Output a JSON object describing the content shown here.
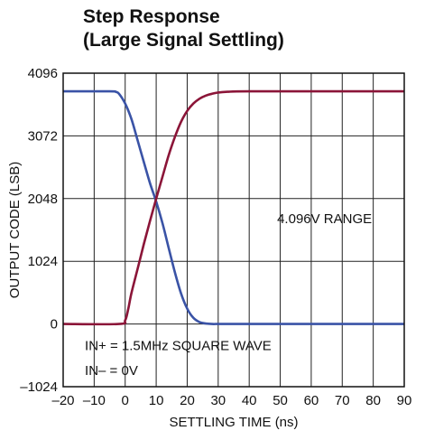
{
  "title_line1": "Step Response",
  "title_line2": "(Large Signal Settling)",
  "chart_data": {
    "type": "line",
    "title": "Step Response (Large Signal Settling)",
    "xlabel": "SETTLING TIME (ns)",
    "ylabel": "OUTPUT CODE (LSB)",
    "xlim": [
      -20,
      90
    ],
    "ylim": [
      -1024,
      4096
    ],
    "xticks": [
      -20,
      -10,
      0,
      10,
      20,
      30,
      40,
      50,
      60,
      70,
      80,
      90
    ],
    "xtick_labels": [
      "–20",
      "–10",
      "0",
      "10",
      "20",
      "30",
      "40",
      "50",
      "60",
      "70",
      "80",
      "90"
    ],
    "yticks": [
      -1024,
      0,
      1024,
      2048,
      3072,
      4096
    ],
    "ytick_labels": [
      "–1024",
      "0",
      "1024",
      "2048",
      "3072",
      "4096"
    ],
    "grid": true,
    "series": [
      {
        "color": "#3a53a6",
        "x": [
          -20,
          -5,
          -3,
          -2,
          0,
          2,
          4,
          6,
          8,
          10,
          12,
          14,
          16,
          18,
          20,
          22,
          24,
          26,
          28,
          30,
          35,
          90
        ],
        "y": [
          3800,
          3800,
          3790,
          3760,
          3600,
          3350,
          3000,
          2650,
          2300,
          2000,
          1650,
          1250,
          850,
          500,
          250,
          100,
          30,
          8,
          0,
          0,
          0,
          0
        ]
      },
      {
        "color": "#8b1538",
        "x": [
          -20,
          -2,
          0,
          1,
          2,
          4,
          6,
          8,
          10,
          12,
          14,
          16,
          18,
          20,
          22,
          24,
          26,
          28,
          30,
          33,
          36,
          40,
          50,
          90
        ],
        "y": [
          0,
          0,
          60,
          250,
          500,
          900,
          1300,
          1680,
          2048,
          2400,
          2750,
          3050,
          3300,
          3480,
          3600,
          3680,
          3730,
          3760,
          3780,
          3792,
          3798,
          3800,
          3800,
          3800
        ]
      }
    ],
    "annotations": [
      {
        "text": "4.096V RANGE",
        "x": 49,
        "y": 1650
      },
      {
        "text": "IN+ = 1.5MHz SQUARE WAVE",
        "x": -13,
        "y": -425
      },
      {
        "text": "IN– = 0V",
        "x": -13,
        "y": -835
      }
    ]
  }
}
